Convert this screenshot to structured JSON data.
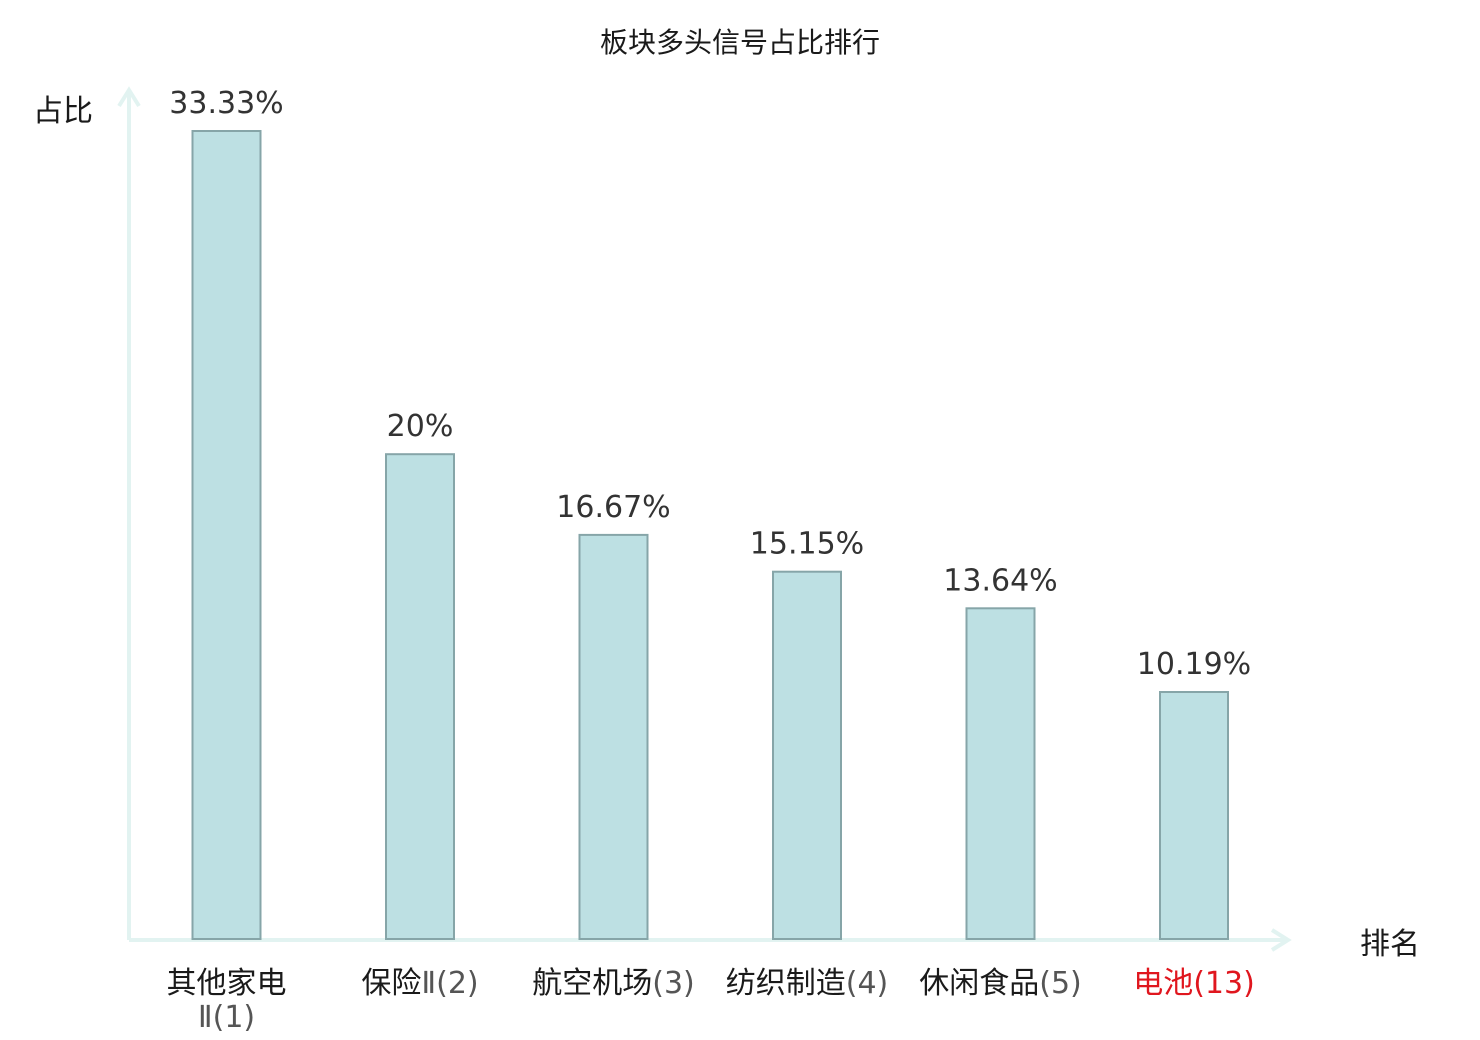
{
  "chart_data": {
    "type": "bar",
    "title": "板块多头信号占比排行",
    "ylabel": "占比",
    "xlabel": "排名",
    "categories": [
      {
        "name": "其他家电",
        "rank": "Ⅱ(1)",
        "wrap": true,
        "highlight": false
      },
      {
        "name": "保险",
        "rank": "Ⅱ(2)",
        "wrap": false,
        "highlight": false
      },
      {
        "name": "航空机场",
        "rank": "(3)",
        "wrap": false,
        "highlight": false
      },
      {
        "name": "纺织制造",
        "rank": "(4)",
        "wrap": false,
        "highlight": false
      },
      {
        "name": "休闲食品",
        "rank": "(5)",
        "wrap": false,
        "highlight": false
      },
      {
        "name": "电池",
        "rank": "(13)",
        "wrap": false,
        "highlight": true
      }
    ],
    "values": [
      33.33,
      20,
      16.67,
      15.15,
      13.64,
      10.19
    ],
    "value_labels": [
      "33.33%",
      "20%",
      "16.67%",
      "15.15%",
      "13.64%",
      "10.19%"
    ],
    "ylim": [
      0,
      33.33
    ],
    "grid": false,
    "y_ticks_shown": false
  },
  "colors": {
    "bar_fill": "#bde0e3",
    "bar_stroke": "#86a5a8",
    "axis": "#e2f3f1",
    "text": "#1a1a1a",
    "value_text": "#333333",
    "highlight": "#e0161e",
    "rank_text": "#555555"
  }
}
